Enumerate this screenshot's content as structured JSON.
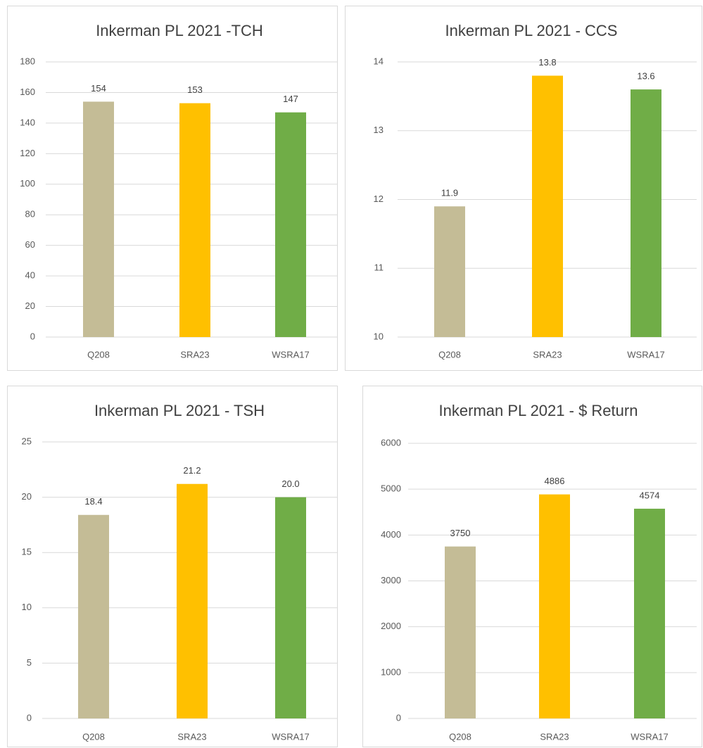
{
  "chart_data": [
    {
      "type": "bar",
      "title": "Inkerman PL 2021 -TCH",
      "categories": [
        "Q208",
        "SRA23",
        "WSRA17"
      ],
      "values": [
        154,
        153,
        147
      ],
      "colors": [
        "#c4bc96",
        "#ffc000",
        "#70ad47"
      ],
      "ylim": [
        0,
        180
      ],
      "yticks": [
        0,
        20,
        40,
        60,
        80,
        100,
        120,
        140,
        160,
        180
      ],
      "grid": true
    },
    {
      "type": "bar",
      "title": "Inkerman PL 2021 - CCS",
      "categories": [
        "Q208",
        "SRA23",
        "WSRA17"
      ],
      "values": [
        11.9,
        13.8,
        13.6
      ],
      "colors": [
        "#c4bc96",
        "#ffc000",
        "#70ad47"
      ],
      "ylim": [
        10,
        14
      ],
      "yticks": [
        10,
        11,
        12,
        13,
        14
      ],
      "grid": true
    },
    {
      "type": "bar",
      "title": "Inkerman PL 2021 - TSH",
      "categories": [
        "Q208",
        "SRA23",
        "WSRA17"
      ],
      "values": [
        18.4,
        21.2,
        20
      ],
      "value_labels": [
        "18.4",
        "21.2",
        "20.0"
      ],
      "colors": [
        "#c4bc96",
        "#ffc000",
        "#70ad47"
      ],
      "ylim": [
        0,
        25
      ],
      "yticks": [
        0,
        5,
        10,
        15,
        20,
        25
      ],
      "grid": true
    },
    {
      "type": "bar",
      "title": "Inkerman PL 2021 - $ Return",
      "categories": [
        "Q208",
        "SRA23",
        "WSRA17"
      ],
      "values": [
        3750,
        4886,
        4574
      ],
      "colors": [
        "#c4bc96",
        "#ffc000",
        "#70ad47"
      ],
      "ylim": [
        0,
        6000
      ],
      "yticks": [
        0,
        1000,
        2000,
        3000,
        4000,
        5000,
        6000
      ],
      "grid": true
    }
  ]
}
